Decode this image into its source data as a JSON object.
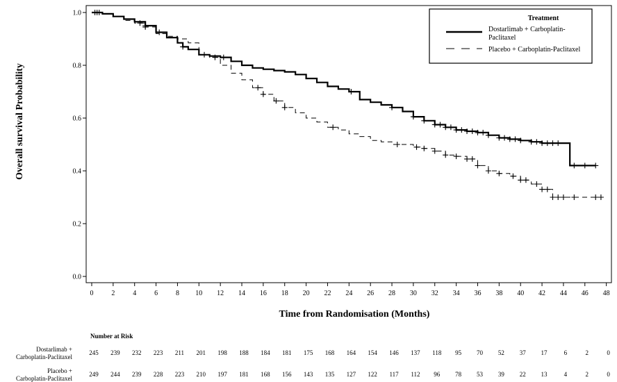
{
  "chart_data": {
    "type": "line",
    "xlabel": "Time from Randomisation (Months)",
    "ylabel": "Overall survival Probability",
    "xlim": [
      0,
      48
    ],
    "ylim": [
      0.0,
      1.0
    ],
    "x_ticks": [
      0,
      2,
      4,
      6,
      8,
      10,
      12,
      14,
      16,
      18,
      20,
      22,
      24,
      26,
      28,
      30,
      32,
      34,
      36,
      38,
      40,
      42,
      44,
      46,
      48
    ],
    "y_ticks": [
      "0.0",
      "0.2",
      "0.4",
      "0.6",
      "0.8",
      "1.0"
    ],
    "legend": {
      "title": "Treatment",
      "placement": "top-right",
      "entries": [
        {
          "lines": [
            "Dostarlimab + Carboplatin-",
            "Paclitaxel"
          ],
          "style": "solid"
        },
        {
          "lines": [
            "Placebo + Carboplatin-Paclitaxel"
          ],
          "style": "dashed"
        }
      ]
    },
    "series": [
      {
        "name": "Dostarlimab + Carboplatin-Paclitaxel",
        "style": "solid",
        "x": [
          0,
          0.5,
          1,
          2,
          3,
          4,
          5,
          6,
          7,
          8,
          8.5,
          9,
          10,
          11,
          12,
          13,
          14,
          15,
          16,
          17,
          18,
          19,
          20,
          21,
          22,
          23,
          24,
          25,
          26,
          27,
          28,
          29,
          30,
          31,
          32,
          33,
          34,
          35,
          36,
          37,
          38,
          39,
          40,
          41,
          42,
          43,
          44,
          44.6,
          47
        ],
        "values": [
          1.0,
          1.0,
          0.995,
          0.985,
          0.975,
          0.965,
          0.95,
          0.925,
          0.905,
          0.885,
          0.87,
          0.86,
          0.84,
          0.835,
          0.83,
          0.815,
          0.8,
          0.79,
          0.785,
          0.78,
          0.775,
          0.765,
          0.75,
          0.735,
          0.72,
          0.71,
          0.7,
          0.67,
          0.66,
          0.65,
          0.64,
          0.625,
          0.605,
          0.59,
          0.575,
          0.565,
          0.555,
          0.55,
          0.545,
          0.535,
          0.525,
          0.52,
          0.515,
          0.51,
          0.505,
          0.505,
          0.505,
          0.42,
          0.42
        ],
        "censor_x": [
          0.3,
          0.5,
          0.7,
          5,
          6.3,
          8.5,
          10.5,
          12.3,
          24.2,
          28,
          30,
          31,
          32,
          32.5,
          33,
          33.5,
          34,
          34.5,
          35,
          35.5,
          36,
          36.5,
          37,
          38,
          38.5,
          39,
          39.5,
          40,
          41,
          41.5,
          42,
          42.5,
          43,
          43.5,
          45,
          46,
          47
        ]
      },
      {
        "name": "Placebo + Carboplatin-Paclitaxel",
        "style": "dashed",
        "x": [
          0,
          0.5,
          1,
          2,
          3,
          4,
          5,
          6,
          7,
          8,
          9,
          10,
          11,
          12,
          13,
          14,
          15,
          16,
          17,
          18,
          19,
          20,
          21,
          22,
          23,
          24,
          25,
          26,
          27,
          28,
          29,
          30,
          31,
          32,
          33,
          34,
          35,
          36,
          37,
          38,
          39,
          40,
          41,
          42,
          43,
          47.5
        ],
        "values": [
          1.0,
          1.0,
          0.995,
          0.985,
          0.97,
          0.96,
          0.945,
          0.92,
          0.91,
          0.9,
          0.885,
          0.84,
          0.83,
          0.8,
          0.77,
          0.745,
          0.715,
          0.69,
          0.665,
          0.64,
          0.62,
          0.6,
          0.585,
          0.565,
          0.555,
          0.54,
          0.53,
          0.515,
          0.51,
          0.5,
          0.5,
          0.49,
          0.485,
          0.475,
          0.46,
          0.455,
          0.445,
          0.42,
          0.4,
          0.39,
          0.38,
          0.365,
          0.35,
          0.33,
          0.3,
          0.3
        ],
        "censor_x": [
          4.5,
          5,
          11.5,
          15.5,
          16,
          17.2,
          18,
          22.5,
          28.5,
          30.3,
          31,
          32,
          33,
          34,
          35,
          35.5,
          36,
          37,
          38,
          39.3,
          40,
          40.5,
          41.5,
          42,
          42.5,
          43,
          43.5,
          44,
          45,
          47,
          47.5
        ]
      }
    ],
    "risk_table": {
      "title": "Number at Risk",
      "rows": [
        {
          "label_lines": [
            "Dostarlimab +",
            "Carboplatin-Paclitaxel"
          ],
          "counts": [
            "245",
            "239",
            "232",
            "223",
            "211",
            "201",
            "198",
            "188",
            "184",
            "181",
            "175",
            "168",
            "164",
            "154",
            "146",
            "137",
            "118",
            "95",
            "70",
            "52",
            "37",
            "17",
            "6",
            "2",
            "0"
          ]
        },
        {
          "label_lines": [
            "Placebo +",
            "Carboplatin-Paclitaxel"
          ],
          "counts": [
            "249",
            "244",
            "239",
            "228",
            "223",
            "210",
            "197",
            "181",
            "168",
            "156",
            "143",
            "135",
            "127",
            "122",
            "117",
            "112",
            "96",
            "78",
            "53",
            "39",
            "22",
            "13",
            "4",
            "2",
            "0"
          ]
        }
      ]
    }
  }
}
